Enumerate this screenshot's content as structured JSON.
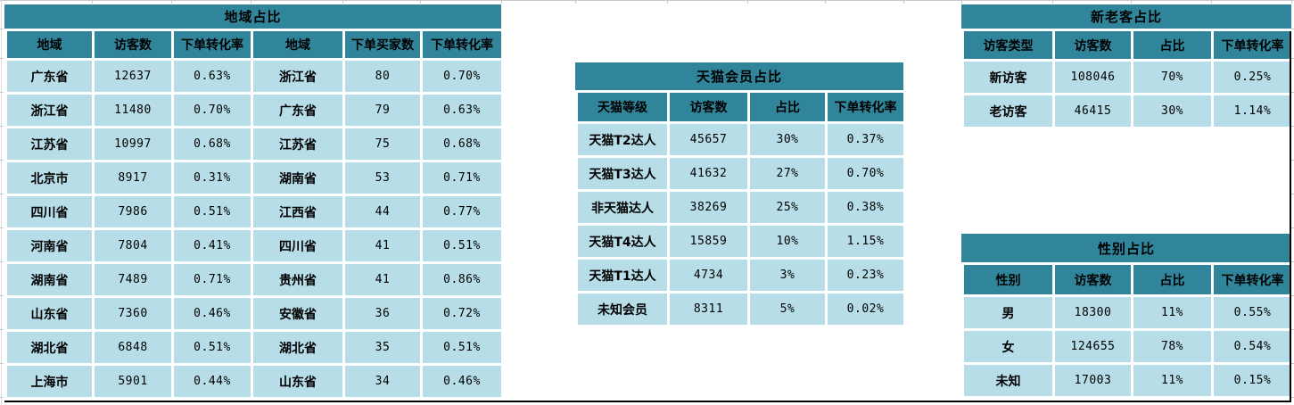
{
  "colors": {
    "header_fill": "#31859B",
    "row_fill": "#B7DEE8",
    "border": "#ffffff",
    "gridline": "#c9c9c9",
    "page_break": "#000000"
  },
  "tables": {
    "region": {
      "title": "地域占比",
      "headers": [
        "地域",
        "访客数",
        "下单转化率",
        "地域",
        "下单买家数",
        "下单转化率"
      ],
      "rows": [
        [
          "广东省",
          "12637",
          "0.63%",
          "浙江省",
          "80",
          "0.70%"
        ],
        [
          "浙江省",
          "11480",
          "0.70%",
          "广东省",
          "79",
          "0.63%"
        ],
        [
          "江苏省",
          "10997",
          "0.68%",
          "江苏省",
          "75",
          "0.68%"
        ],
        [
          "北京市",
          "8917",
          "0.31%",
          "湖南省",
          "53",
          "0.71%"
        ],
        [
          "四川省",
          "7986",
          "0.51%",
          "江西省",
          "44",
          "0.77%"
        ],
        [
          "河南省",
          "7804",
          "0.41%",
          "四川省",
          "41",
          "0.51%"
        ],
        [
          "湖南省",
          "7489",
          "0.71%",
          "贵州省",
          "41",
          "0.86%"
        ],
        [
          "山东省",
          "7360",
          "0.46%",
          "安徽省",
          "36",
          "0.72%"
        ],
        [
          "湖北省",
          "6848",
          "0.51%",
          "湖北省",
          "35",
          "0.51%"
        ],
        [
          "上海市",
          "5901",
          "0.44%",
          "山东省",
          "34",
          "0.46%"
        ]
      ]
    },
    "tmall": {
      "title": "天猫会员占比",
      "headers": [
        "天猫等级",
        "访客数",
        "占比",
        "下单转化率"
      ],
      "rows": [
        [
          "天猫T2达人",
          "45657",
          "30%",
          "0.37%"
        ],
        [
          "天猫T3达人",
          "41632",
          "27%",
          "0.70%"
        ],
        [
          "非天猫达人",
          "38269",
          "25%",
          "0.38%"
        ],
        [
          "天猫T4达人",
          "15859",
          "10%",
          "1.15%"
        ],
        [
          "天猫T1达人",
          "4734",
          "3%",
          "0.23%"
        ],
        [
          "未知会员",
          "8311",
          "5%",
          "0.02%"
        ]
      ]
    },
    "new_old": {
      "title": "新老客占比",
      "headers": [
        "访客类型",
        "访客数",
        "占比",
        "下单转化率"
      ],
      "rows": [
        [
          "新访客",
          "108046",
          "70%",
          "0.25%"
        ],
        [
          "老访客",
          "46415",
          "30%",
          "1.14%"
        ]
      ]
    },
    "gender": {
      "title": "性别占比",
      "headers": [
        "性别",
        "访客数",
        "占比",
        "下单转化率"
      ],
      "rows": [
        [
          "男",
          "18300",
          "11%",
          "0.55%"
        ],
        [
          "女",
          "124655",
          "78%",
          "0.54%"
        ],
        [
          "未知",
          "17003",
          "11%",
          "0.15%"
        ]
      ]
    }
  }
}
